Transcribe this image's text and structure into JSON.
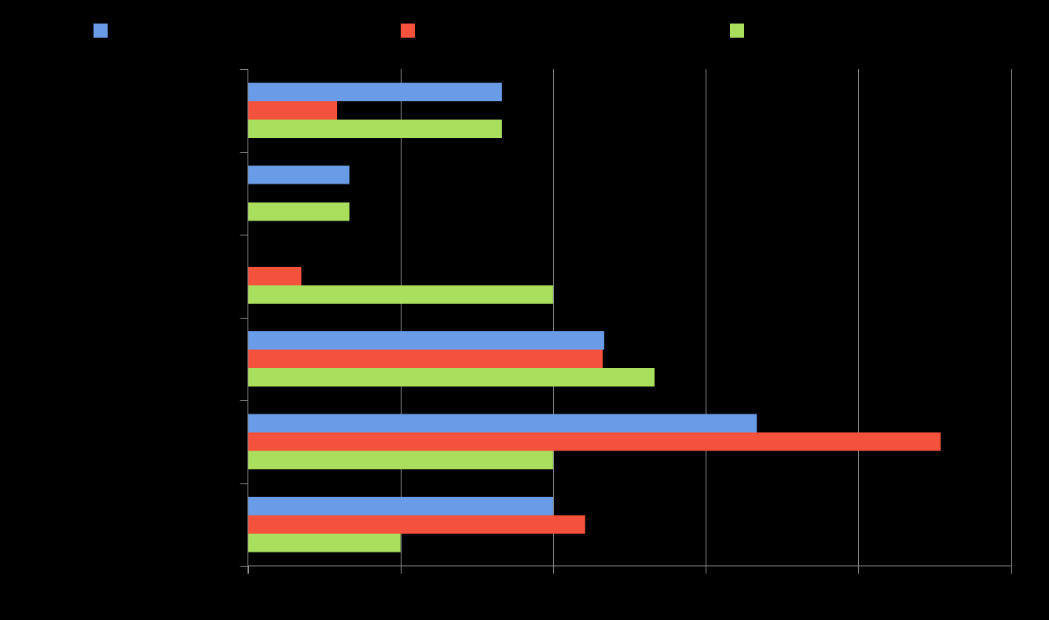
{
  "chart_data": {
    "type": "bar",
    "orientation": "horizontal",
    "grid": true,
    "legend_position": "top",
    "xlim": [
      0,
      100
    ],
    "categories": [
      "",
      "",
      "",
      "",
      "",
      ""
    ],
    "series": [
      {
        "name": "",
        "color": "#6a9be6",
        "values": [
          33.3,
          13.3,
          0,
          46.7,
          66.7,
          40
        ]
      },
      {
        "name": "",
        "color": "#f4523c",
        "values": [
          11.7,
          0,
          7,
          46.5,
          90.8,
          44.2
        ]
      },
      {
        "name": "",
        "color": "#a9df5c",
        "values": [
          33.3,
          13.3,
          40,
          53.3,
          40,
          20
        ]
      }
    ],
    "title": "",
    "xlabel": "",
    "ylabel": ""
  }
}
